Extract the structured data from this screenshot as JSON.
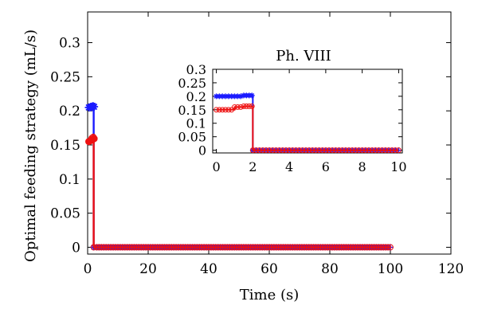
{
  "chart_data": [
    {
      "id": "main",
      "type": "scatter",
      "title": "",
      "xlabel": "Time (s)",
      "ylabel": "Optimal feeding strategy (mL/s)",
      "xlim": [
        0,
        120
      ],
      "ylim": [
        -0.01,
        0.345
      ],
      "xticks": [
        0,
        20,
        40,
        60,
        80,
        100,
        120
      ],
      "yticks": [
        0,
        0.05,
        0.1,
        0.15,
        0.2,
        0.25,
        0.3
      ],
      "grid": false,
      "series": [
        {
          "color": "#1a1aff",
          "marker": "star",
          "x": [
            0.4,
            0.7,
            1.0,
            1.3,
            1.6,
            1.9,
            2.0,
            3.0,
            10,
            20,
            30,
            40,
            50,
            60,
            70,
            80,
            90,
            100
          ],
          "y": [
            0.205,
            0.206,
            0.207,
            0.207,
            0.208,
            0.208,
            0,
            0,
            0,
            0,
            0,
            0,
            0,
            0,
            0,
            0,
            0,
            0
          ]
        },
        {
          "color": "#ee1111",
          "marker": "circle",
          "x": [
            0.4,
            0.7,
            1.0,
            1.3,
            1.6,
            1.9,
            2.0,
            3.0,
            10,
            20,
            30,
            40,
            50,
            60,
            70,
            80,
            90,
            100
          ],
          "y": [
            0.155,
            0.155,
            0.157,
            0.16,
            0.161,
            0.162,
            0,
            0,
            0,
            0,
            0,
            0,
            0,
            0,
            0,
            0,
            0,
            0
          ]
        }
      ]
    },
    {
      "id": "inset",
      "type": "scatter",
      "title": "Ph. VIII",
      "xlabel": "",
      "ylabel": "",
      "xlim": [
        -0.2,
        10.2
      ],
      "ylim": [
        -0.01,
        0.3
      ],
      "xticks": [
        0,
        2,
        4,
        6,
        8,
        10
      ],
      "yticks": [
        0,
        0.05,
        0.1,
        0.15,
        0.2,
        0.25,
        0.3
      ],
      "grid": false,
      "series": [
        {
          "color": "#1a1aff",
          "marker": "star",
          "x": [
            0,
            0.5,
            1.0,
            1.5,
            1.95,
            2.0,
            4,
            6,
            8,
            10
          ],
          "y": [
            0.2,
            0.2,
            0.2,
            0.203,
            0.203,
            0,
            0,
            0,
            0,
            0
          ]
        },
        {
          "color": "#ee1111",
          "marker": "circle",
          "x": [
            0,
            0.5,
            1.0,
            1.5,
            1.95,
            2.0,
            4,
            6,
            8,
            10
          ],
          "y": [
            0.15,
            0.15,
            0.16,
            0.163,
            0.163,
            0,
            0,
            0,
            0,
            0
          ]
        }
      ]
    }
  ]
}
